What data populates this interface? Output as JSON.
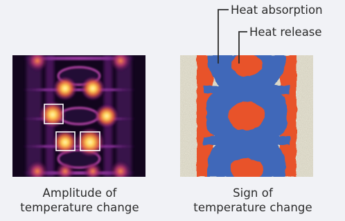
{
  "callouts": {
    "absorption": "Heat absorption",
    "release": "Heat release"
  },
  "captions": {
    "amplitude": [
      "Amplitude of",
      "temperature change"
    ],
    "sign": [
      "Sign of",
      "temperature change"
    ]
  },
  "colors": {
    "background": "#f1f2f6",
    "amplitude_dark": "#12051d",
    "amplitude_glow": "#ffd96a",
    "sign_absorption": "#3f68b9",
    "sign_release": "#e8522a",
    "sign_noise": "#c7c0a4",
    "highlight_box": "#ffffff"
  }
}
